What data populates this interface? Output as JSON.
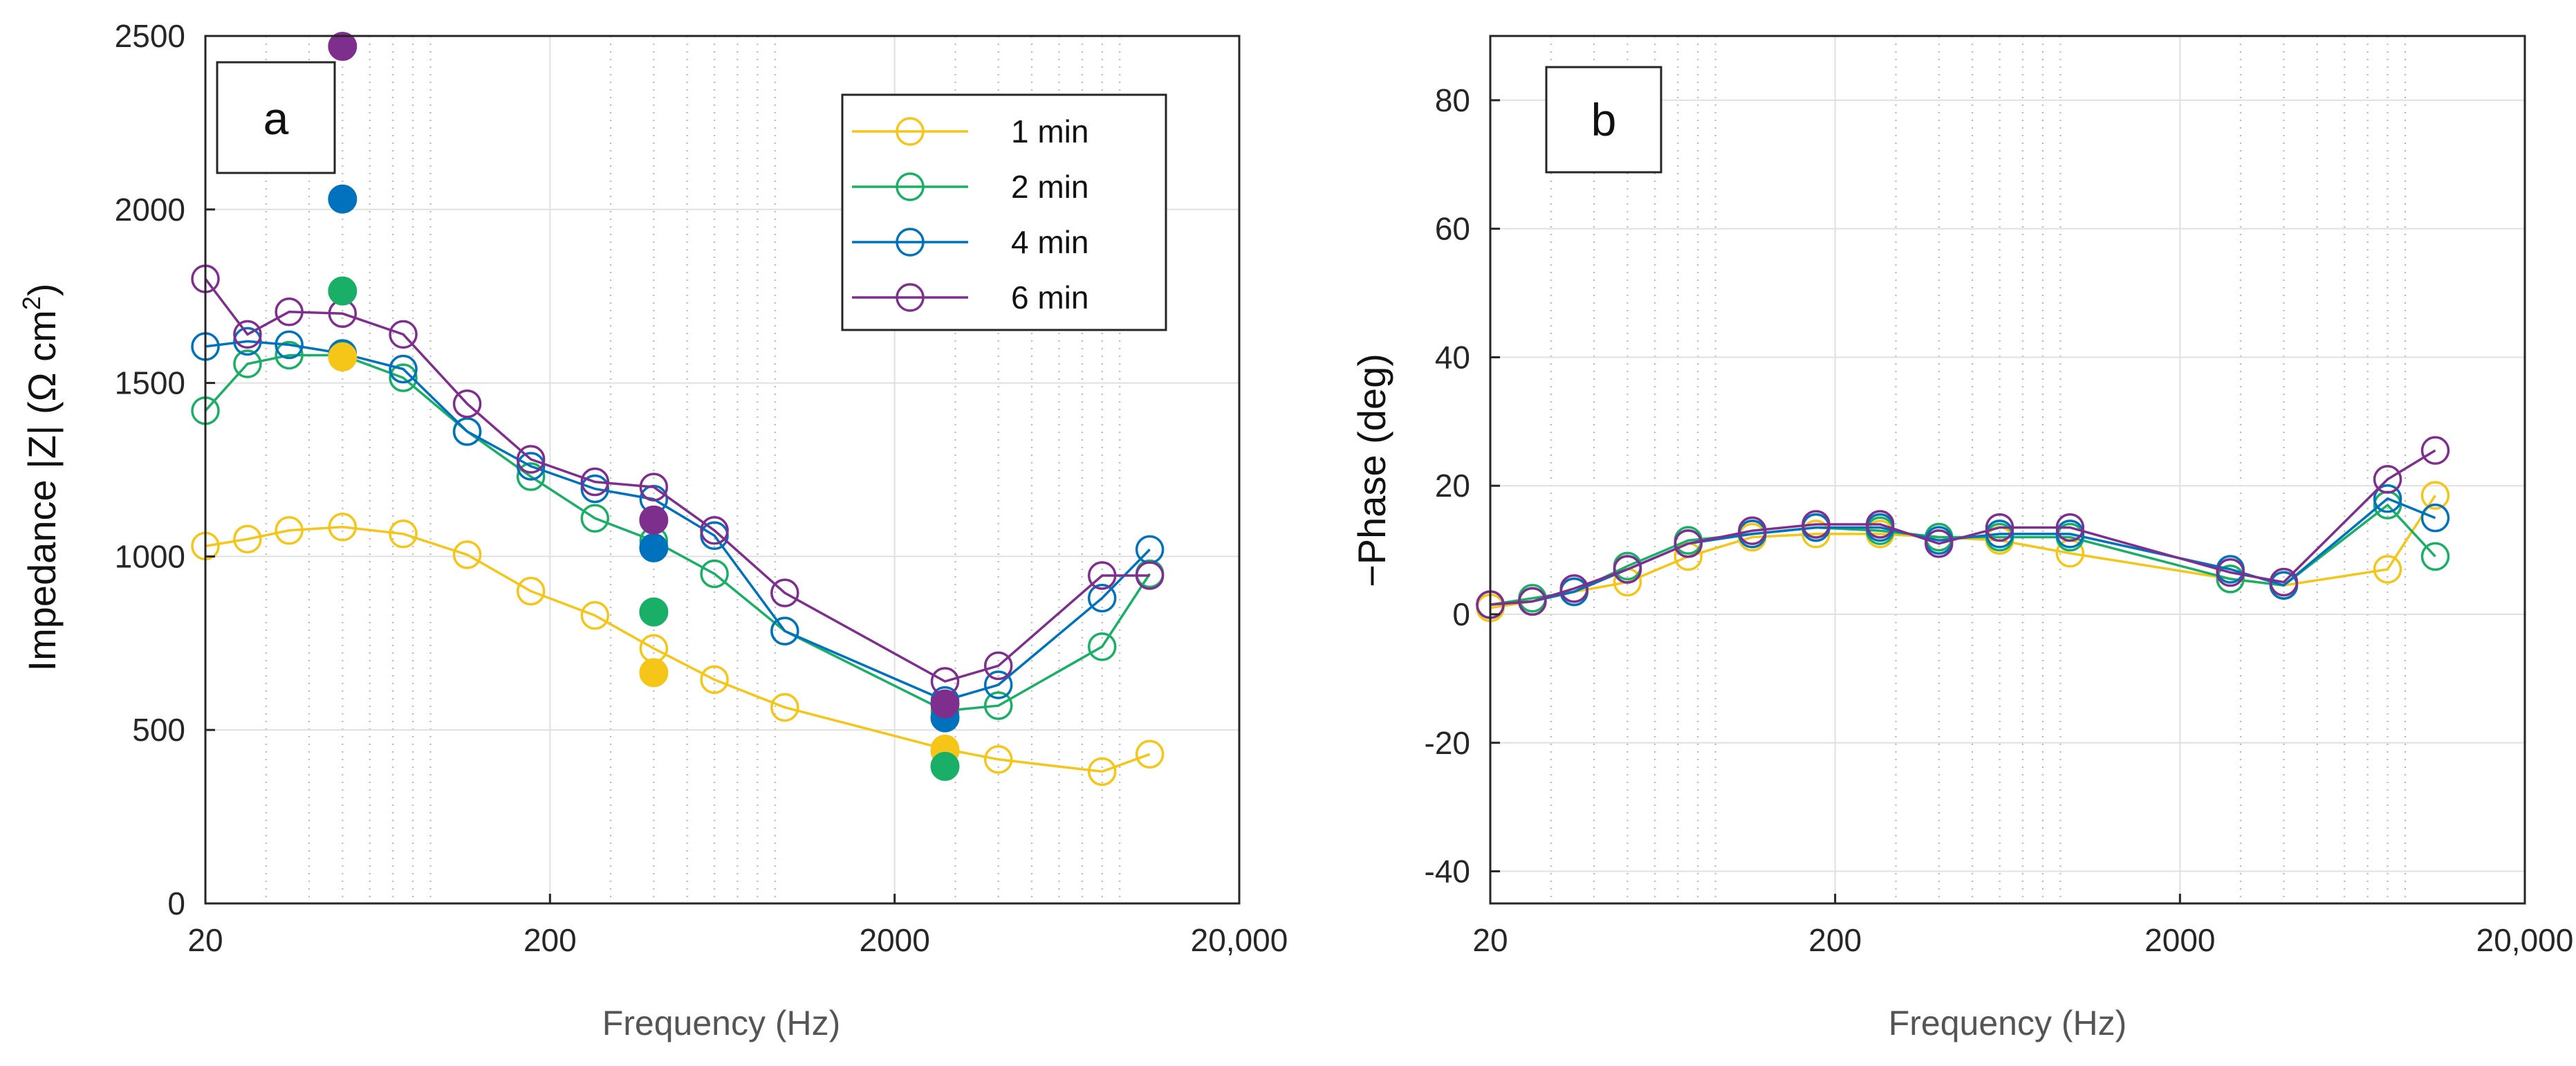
{
  "chart_data": [
    {
      "type": "line",
      "panel_label": "a",
      "title": "",
      "xlabel": "Frequency (Hz)",
      "ylabel": "Impedance |Z| (Ω cm",
      "ylabel_superscript": "2",
      "ylabel_close": ")",
      "xscale": "log",
      "xlim": [
        20,
        20000
      ],
      "ylim": [
        0,
        2500
      ],
      "xticks": [
        20,
        200,
        2000,
        20000
      ],
      "xtick_labels": [
        "20",
        "200",
        "2000",
        "20,000"
      ],
      "yticks": [
        0,
        500,
        1000,
        1500,
        2000,
        2500
      ],
      "ytick_labels": [
        "0",
        "500",
        "1000",
        "1500",
        "2000",
        "2500"
      ],
      "grid": true,
      "legend_position": "top-right",
      "legend": [
        "1 min",
        "2 min",
        "4 min",
        "6 min"
      ],
      "series": [
        {
          "name": "1 min",
          "color": "#F5C518",
          "x": [
            20,
            26.5,
            35,
            50,
            75,
            115,
            176,
            270,
            400,
            600,
            960,
            2800,
            4000,
            8000,
            11000
          ],
          "y": [
            1030,
            1050,
            1075,
            1085,
            1065,
            1005,
            900,
            830,
            735,
            645,
            565,
            445,
            415,
            380,
            430
          ],
          "filled_x": [
            50,
            400,
            2800
          ],
          "filled_y": [
            1575,
            665,
            440
          ]
        },
        {
          "name": "2 min",
          "color": "#1AAF66",
          "x": [
            20,
            26.5,
            35,
            50,
            75,
            115,
            176,
            270,
            400,
            600,
            960,
            2800,
            4000,
            8000,
            11000
          ],
          "y": [
            1420,
            1555,
            1580,
            1580,
            1515,
            1360,
            1230,
            1110,
            1045,
            950,
            785,
            555,
            570,
            740,
            950
          ],
          "filled_x": [
            50,
            400,
            2800
          ],
          "filled_y": [
            1765,
            840,
            395
          ]
        },
        {
          "name": "4 min",
          "color": "#0072BD",
          "x": [
            20,
            26.5,
            35,
            50,
            75,
            115,
            176,
            270,
            400,
            600,
            960,
            2800,
            4000,
            8000,
            11000
          ],
          "y": [
            1605,
            1620,
            1610,
            1585,
            1540,
            1360,
            1260,
            1195,
            1165,
            1060,
            785,
            585,
            630,
            880,
            1020
          ],
          "filled_x": [
            50,
            400,
            2800
          ],
          "filled_y": [
            2030,
            1025,
            535
          ]
        },
        {
          "name": "6 min",
          "color": "#7E2F8E",
          "x": [
            20,
            26.5,
            35,
            50,
            75,
            115,
            176,
            270,
            400,
            600,
            960,
            2800,
            4000,
            8000,
            11000
          ],
          "y": [
            1800,
            1640,
            1705,
            1700,
            1640,
            1440,
            1280,
            1215,
            1200,
            1075,
            895,
            640,
            685,
            945,
            945
          ],
          "filled_x": [
            50,
            400,
            2800
          ],
          "filled_y": [
            2470,
            1105,
            575
          ]
        }
      ]
    },
    {
      "type": "line",
      "panel_label": "b",
      "title": "",
      "xlabel": "Frequency (Hz)",
      "ylabel": "−Phase (deg)",
      "xscale": "log",
      "xlim": [
        20,
        20000
      ],
      "ylim": [
        -45,
        90
      ],
      "xticks": [
        20,
        200,
        2000,
        20000
      ],
      "xtick_labels": [
        "20",
        "200",
        "2000",
        "20,000"
      ],
      "yticks": [
        -40,
        -20,
        0,
        20,
        40,
        60,
        80
      ],
      "ytick_labels": [
        "-40",
        "-20",
        "0",
        "20",
        "40",
        "60",
        "80"
      ],
      "grid": true,
      "series": [
        {
          "name": "1 min",
          "color": "#F5C518",
          "x": [
            20,
            26.5,
            35,
            50,
            75,
            115,
            176,
            270,
            400,
            600,
            960,
            2800,
            4000,
            8000,
            11000
          ],
          "y": [
            1,
            2,
            3.5,
            5,
            9,
            12,
            12.5,
            12.5,
            12,
            11.5,
            9.5,
            5.5,
            4.5,
            7,
            18.5
          ]
        },
        {
          "name": "2 min",
          "color": "#1AAF66",
          "x": [
            20,
            26.5,
            35,
            50,
            75,
            115,
            176,
            270,
            400,
            600,
            960,
            2800,
            4000,
            8000,
            11000
          ],
          "y": [
            1.5,
            2.5,
            3.5,
            7.5,
            11.5,
            12.5,
            13.5,
            13,
            12,
            12,
            12,
            5.5,
            4.5,
            17,
            9
          ]
        },
        {
          "name": "4 min",
          "color": "#0072BD",
          "x": [
            20,
            26.5,
            35,
            50,
            75,
            115,
            176,
            270,
            400,
            600,
            960,
            2800,
            4000,
            8000,
            11000
          ],
          "y": [
            1.5,
            2,
            3.5,
            7,
            11,
            12.5,
            13.5,
            13.5,
            11.5,
            12.5,
            12.5,
            7,
            4.5,
            18,
            15
          ]
        },
        {
          "name": "6 min",
          "color": "#7E2F8E",
          "x": [
            20,
            26.5,
            35,
            50,
            75,
            115,
            176,
            270,
            400,
            600,
            960,
            2800,
            4000,
            8000,
            11000
          ],
          "y": [
            1.5,
            2,
            4,
            7,
            11,
            13,
            14,
            14,
            11,
            13.5,
            13.5,
            6.5,
            5,
            21,
            25.5
          ]
        }
      ]
    }
  ]
}
